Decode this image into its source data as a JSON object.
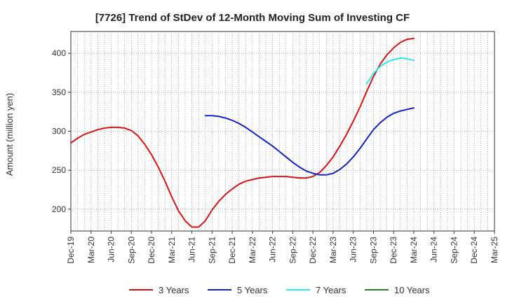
{
  "chart_data": {
    "type": "line",
    "title": "[7726]  Trend of StDev of 12-Month Moving Sum of Investing CF",
    "xlabel": "",
    "ylabel": "Amount (million yen)",
    "ylim": [
      172,
      428
    ],
    "yticks": [
      200,
      250,
      300,
      350,
      400
    ],
    "x_ticks": [
      "Dec-19",
      "Mar-20",
      "Jun-20",
      "Sep-20",
      "Dec-20",
      "Mar-21",
      "Jun-21",
      "Sep-21",
      "Dec-21",
      "Mar-22",
      "Jun-22",
      "Sep-22",
      "Dec-22",
      "Mar-23",
      "Jun-23",
      "Sep-23",
      "Dec-23",
      "Mar-24",
      "Jun-24",
      "Sep-24",
      "Dec-24",
      "Mar-25"
    ],
    "grid": true,
    "legend_position": "bottom",
    "series": [
      {
        "name": "3 Years",
        "color": "#dd1111",
        "points": [
          [
            "Dec-19",
            285
          ],
          [
            "Jan-20",
            291
          ],
          [
            "Feb-20",
            296
          ],
          [
            "Mar-20",
            299
          ],
          [
            "Apr-20",
            302
          ],
          [
            "May-20",
            304
          ],
          [
            "Jun-20",
            305
          ],
          [
            "Jul-20",
            305
          ],
          [
            "Aug-20",
            304
          ],
          [
            "Sep-20",
            301
          ],
          [
            "Oct-20",
            294
          ],
          [
            "Nov-20",
            283
          ],
          [
            "Dec-20",
            270
          ],
          [
            "Jan-21",
            254
          ],
          [
            "Feb-21",
            236
          ],
          [
            "Mar-21",
            216
          ],
          [
            "Apr-21",
            198
          ],
          [
            "May-21",
            185
          ],
          [
            "Jun-21",
            177
          ],
          [
            "Jul-21",
            177
          ],
          [
            "Aug-21",
            185
          ],
          [
            "Sep-21",
            199
          ],
          [
            "Oct-21",
            210
          ],
          [
            "Nov-21",
            219
          ],
          [
            "Dec-21",
            226
          ],
          [
            "Jan-22",
            232
          ],
          [
            "Feb-22",
            236
          ],
          [
            "Mar-22",
            238
          ],
          [
            "Apr-22",
            240
          ],
          [
            "May-22",
            241
          ],
          [
            "Jun-22",
            242
          ],
          [
            "Jul-22",
            242
          ],
          [
            "Aug-22",
            242
          ],
          [
            "Sep-22",
            241
          ],
          [
            "Oct-22",
            240
          ],
          [
            "Nov-22",
            240
          ],
          [
            "Dec-22",
            242
          ],
          [
            "Jan-23",
            247
          ],
          [
            "Feb-23",
            256
          ],
          [
            "Mar-23",
            267
          ],
          [
            "Apr-23",
            281
          ],
          [
            "May-23",
            296
          ],
          [
            "Jun-23",
            313
          ],
          [
            "Jul-23",
            331
          ],
          [
            "Aug-23",
            351
          ],
          [
            "Sep-23",
            370
          ],
          [
            "Oct-23",
            386
          ],
          [
            "Nov-23",
            398
          ],
          [
            "Dec-23",
            407
          ],
          [
            "Jan-24",
            414
          ],
          [
            "Feb-24",
            418
          ],
          [
            "Mar-24",
            419
          ]
        ]
      },
      {
        "name": "5 Years",
        "color": "#1122cc",
        "points": [
          [
            "Aug-21",
            320
          ],
          [
            "Sep-21",
            320
          ],
          [
            "Oct-21",
            319
          ],
          [
            "Nov-21",
            317
          ],
          [
            "Dec-21",
            314
          ],
          [
            "Jan-22",
            310
          ],
          [
            "Feb-22",
            305
          ],
          [
            "Mar-22",
            299
          ],
          [
            "Apr-22",
            293
          ],
          [
            "May-22",
            287
          ],
          [
            "Jun-22",
            281
          ],
          [
            "Jul-22",
            274
          ],
          [
            "Aug-22",
            267
          ],
          [
            "Sep-22",
            260
          ],
          [
            "Oct-22",
            254
          ],
          [
            "Nov-22",
            249
          ],
          [
            "Dec-22",
            246
          ],
          [
            "Jan-23",
            244
          ],
          [
            "Feb-23",
            244
          ],
          [
            "Mar-23",
            246
          ],
          [
            "Apr-23",
            251
          ],
          [
            "May-23",
            258
          ],
          [
            "Jun-23",
            267
          ],
          [
            "Jul-23",
            278
          ],
          [
            "Aug-23",
            290
          ],
          [
            "Sep-23",
            302
          ],
          [
            "Oct-23",
            311
          ],
          [
            "Nov-23",
            318
          ],
          [
            "Dec-23",
            323
          ],
          [
            "Jan-24",
            326
          ],
          [
            "Feb-24",
            328
          ],
          [
            "Mar-24",
            330
          ]
        ]
      },
      {
        "name": "7 Years",
        "color": "#22eeee",
        "points": [
          [
            "Aug-23",
            361
          ],
          [
            "Sep-23",
            374
          ],
          [
            "Oct-23",
            383
          ],
          [
            "Nov-23",
            389
          ],
          [
            "Dec-23",
            392
          ],
          [
            "Jan-24",
            394
          ],
          [
            "Feb-24",
            393
          ],
          [
            "Mar-24",
            391
          ]
        ]
      },
      {
        "name": "10 Years",
        "color": "#228822",
        "points": []
      }
    ]
  }
}
